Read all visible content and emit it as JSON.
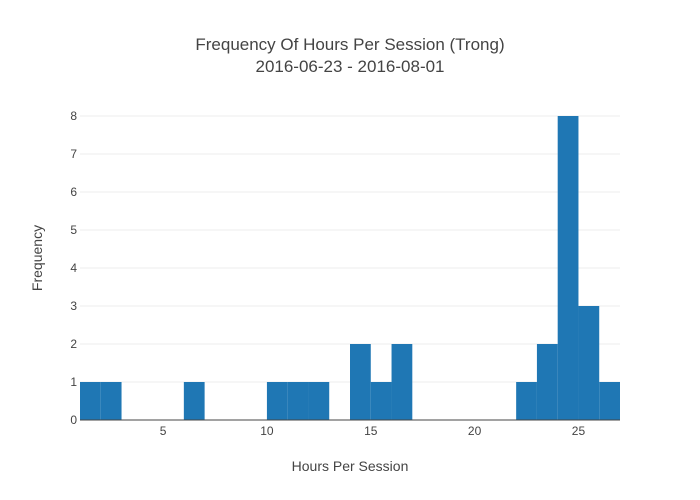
{
  "chart_data": {
    "type": "bar",
    "title": "Frequency Of Hours Per Session (Trong)",
    "subtitle": "2016-06-23 - 2016-08-01",
    "xlabel": "Hours Per Session",
    "ylabel": "Frequency",
    "xlim": [
      1,
      27
    ],
    "ylim": [
      0,
      8
    ],
    "x_ticks": [
      5,
      10,
      15,
      20,
      25
    ],
    "y_ticks": [
      0,
      1,
      2,
      3,
      4,
      5,
      6,
      7,
      8
    ],
    "bin_size": 1,
    "bin_starts": [
      1,
      2,
      3,
      4,
      5,
      6,
      7,
      8,
      9,
      10,
      11,
      12,
      13,
      14,
      15,
      16,
      17,
      18,
      19,
      20,
      21,
      22,
      23,
      24,
      25,
      26
    ],
    "values": [
      1,
      1,
      0,
      0,
      0,
      1,
      0,
      0,
      0,
      1,
      1,
      1,
      0,
      2,
      1,
      2,
      0,
      0,
      0,
      0,
      0,
      1,
      2,
      8,
      3,
      1
    ],
    "bar_color": "#1f77b4",
    "grid": true
  }
}
